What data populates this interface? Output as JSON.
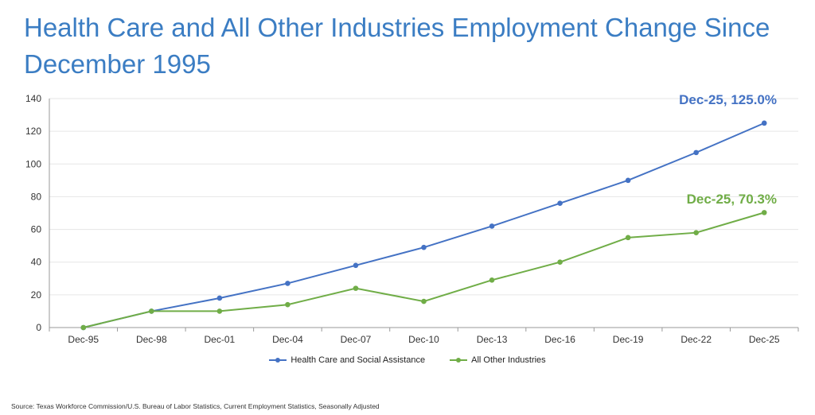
{
  "title": "Health Care and All Other Industries Employment Change Since December 1995",
  "source": "Source: Texas Workforce Commission/U.S. Bureau of Labor Statistics, Current Employment Statistics, Seasonally Adjusted",
  "chart_data": {
    "type": "line",
    "categories": [
      "Dec-95",
      "Dec-98",
      "Dec-01",
      "Dec-04",
      "Dec-07",
      "Dec-10",
      "Dec-13",
      "Dec-16",
      "Dec-19",
      "Dec-22",
      "Dec-25"
    ],
    "ylim": [
      0,
      140
    ],
    "yticks": [
      0,
      20,
      40,
      60,
      80,
      100,
      120,
      140
    ],
    "grid": true,
    "legend_position": "bottom",
    "series": [
      {
        "name": "Health Care and Social Assistance",
        "color": "#4472c4",
        "values": [
          0,
          10,
          18,
          27,
          38,
          49,
          62,
          76,
          90,
          107,
          125
        ],
        "annotation": "Dec-25, 125.0%"
      },
      {
        "name": "All Other Industries",
        "color": "#70ad47",
        "values": [
          0,
          10,
          10,
          14,
          24,
          16,
          29,
          40,
          55,
          58,
          70.3
        ],
        "annotation": "Dec-25, 70.3%"
      }
    ]
  }
}
